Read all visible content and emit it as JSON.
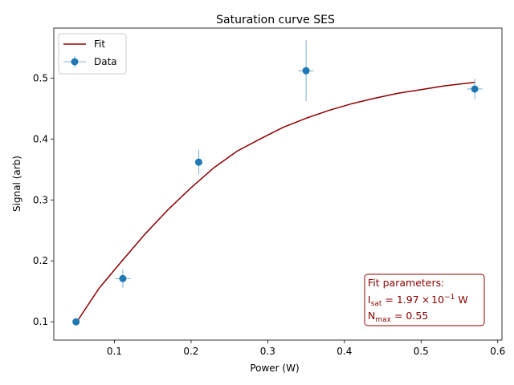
{
  "chart_data": {
    "type": "scatter",
    "title": "Saturation curve SES",
    "xlabel": "Power (W)",
    "ylabel": "Signal (arb)",
    "xlim": [
      0.021,
      0.6055
    ],
    "ylim": [
      0.07,
      0.582
    ],
    "xticks": [
      0.1,
      0.2,
      0.3,
      0.4,
      0.5,
      0.6
    ],
    "xtick_labels": [
      "0.1",
      "0.2",
      "0.3",
      "0.4",
      "0.5",
      "0.6"
    ],
    "yticks": [
      0.1,
      0.2,
      0.3,
      0.4,
      0.5
    ],
    "ytick_labels": [
      "0.1",
      "0.2",
      "0.3",
      "0.4",
      "0.5"
    ],
    "grid": false,
    "legend_position": "top-left",
    "series": [
      {
        "name": "Data",
        "kind": "errorbar",
        "color": "#1f77b4",
        "x": [
          0.05,
          0.111,
          0.21,
          0.35,
          0.57
        ],
        "y": [
          0.1,
          0.171,
          0.362,
          0.512,
          0.482
        ],
        "xerr": [
          0.0,
          0.01,
          0.0,
          0.01,
          0.01
        ],
        "yerr": [
          0.0,
          0.015,
          0.02,
          0.05,
          0.017
        ]
      },
      {
        "name": "Fit",
        "kind": "line",
        "color": "#8b0000",
        "x": [
          0.05,
          0.08,
          0.11,
          0.14,
          0.17,
          0.2,
          0.23,
          0.26,
          0.29,
          0.32,
          0.35,
          0.38,
          0.41,
          0.44,
          0.47,
          0.5,
          0.53,
          0.57
        ],
        "y": [
          0.098,
          0.155,
          0.2,
          0.244,
          0.284,
          0.32,
          0.353,
          0.38,
          0.4,
          0.419,
          0.434,
          0.447,
          0.458,
          0.467,
          0.475,
          0.481,
          0.487,
          0.493
        ]
      }
    ],
    "annotation": {
      "title": "Fit parameters:",
      "isat_symbol": "I",
      "isat_sub": "sat",
      "isat_prefix": " = 1.97",
      "isat_times": "×",
      "isat_base": "10",
      "isat_exp": "−1",
      "isat_unit": " W",
      "nmax_symbol": "N",
      "nmax_sub": "max",
      "nmax_value": " = 0.55",
      "color": "#8b0000"
    }
  }
}
